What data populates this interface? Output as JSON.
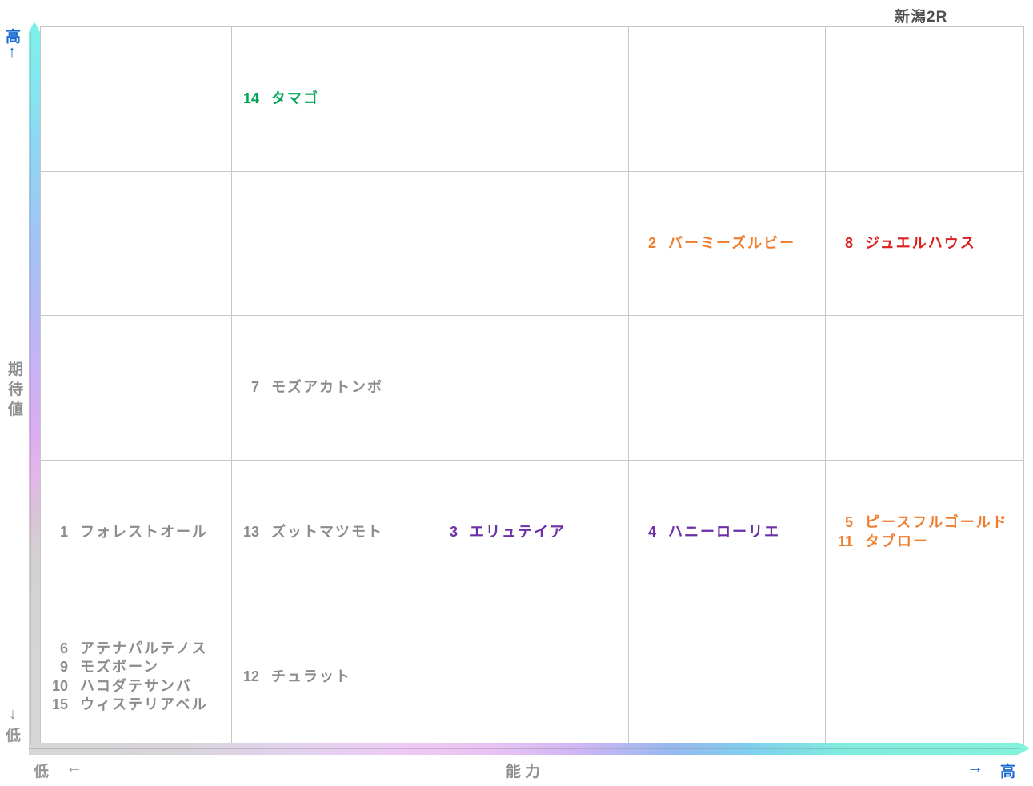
{
  "colors": {
    "axis_blue": "#1a6ad2",
    "axis_gray": "#979797",
    "label_gray": "#8f8f8f",
    "title_gray": "#4f4f4f",
    "grid_line": "#c6c6c6",
    "horse_green": "#00a55a",
    "horse_orange": "#ee7d2e",
    "horse_red": "#dc2020",
    "horse_purple": "#6c2fa8",
    "horse_gray": "#8c8c8c"
  },
  "chart_data": {
    "type": "scatter",
    "title": "新潟2R",
    "xlabel": "能力",
    "ylabel": "期待値",
    "x_axis": {
      "low_label": "低",
      "high_label": "高",
      "arrow_left": "←",
      "arrow_right": "→"
    },
    "y_axis": {
      "low_label": "低",
      "high_label": "高",
      "arrow_up": "↑",
      "arrow_down": "↓"
    },
    "grid": {
      "rows": 5,
      "cols": 5
    },
    "cells": [
      {
        "row": 1,
        "col": 2,
        "horses": [
          {
            "num": "14",
            "name": "タマゴ",
            "color": "horse_green"
          }
        ]
      },
      {
        "row": 2,
        "col": 4,
        "horses": [
          {
            "num": "2",
            "name": "バーミーズルビー",
            "color": "horse_orange"
          }
        ]
      },
      {
        "row": 2,
        "col": 5,
        "horses": [
          {
            "num": "8",
            "name": "ジュエルハウス",
            "color": "horse_red"
          }
        ]
      },
      {
        "row": 3,
        "col": 2,
        "horses": [
          {
            "num": "7",
            "name": "モズアカトンボ",
            "color": "horse_gray"
          }
        ]
      },
      {
        "row": 4,
        "col": 1,
        "horses": [
          {
            "num": "1",
            "name": "フォレストオール",
            "color": "horse_gray"
          }
        ]
      },
      {
        "row": 4,
        "col": 2,
        "horses": [
          {
            "num": "13",
            "name": "ズットマツモト",
            "color": "horse_gray"
          }
        ]
      },
      {
        "row": 4,
        "col": 3,
        "horses": [
          {
            "num": "3",
            "name": "エリュテイア",
            "color": "horse_purple"
          }
        ]
      },
      {
        "row": 4,
        "col": 4,
        "horses": [
          {
            "num": "4",
            "name": "ハニーローリエ",
            "color": "horse_purple"
          }
        ]
      },
      {
        "row": 4,
        "col": 5,
        "horses": [
          {
            "num": "5",
            "name": "ピースフルゴールド",
            "color": "horse_orange"
          },
          {
            "num": "11",
            "name": "タブロー",
            "color": "horse_orange"
          }
        ]
      },
      {
        "row": 5,
        "col": 1,
        "horses": [
          {
            "num": "6",
            "name": "アテナパルテノス",
            "color": "horse_gray"
          },
          {
            "num": "9",
            "name": "モズボーン",
            "color": "horse_gray"
          },
          {
            "num": "10",
            "name": "ハコダテサンバ",
            "color": "horse_gray"
          },
          {
            "num": "15",
            "name": "ウィステリアベル",
            "color": "horse_gray"
          }
        ]
      },
      {
        "row": 5,
        "col": 2,
        "horses": [
          {
            "num": "12",
            "name": "チュラット",
            "color": "horse_gray"
          }
        ]
      }
    ]
  }
}
